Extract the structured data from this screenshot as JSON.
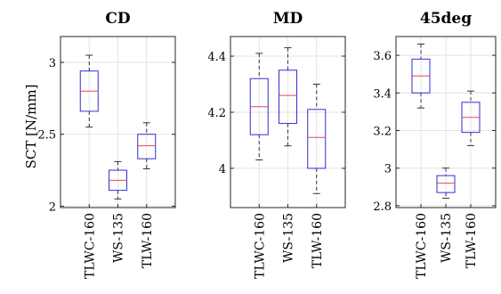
{
  "chart_data": {
    "type": "box",
    "ylabel": "SCT [N/mm]",
    "categories": [
      "TLWC-160",
      "WS-135",
      "TLW-160"
    ],
    "colors": {
      "box": "#2f2fd6",
      "median": "#e8474b",
      "whisker": "#333333"
    },
    "grid": true,
    "panels": [
      {
        "title": "CD",
        "ylim": [
          1.99,
          3.18
        ],
        "yticks": [
          2,
          2.5,
          3
        ],
        "ytick_labels": [
          "2",
          "2.5",
          "3"
        ],
        "boxes": [
          {
            "category": "TLWC-160",
            "min": 2.55,
            "q1": 2.66,
            "median": 2.8,
            "q3": 2.94,
            "max": 3.05
          },
          {
            "category": "WS-135",
            "min": 2.05,
            "q1": 2.11,
            "median": 2.18,
            "q3": 2.25,
            "max": 2.31
          },
          {
            "category": "TLW-160",
            "min": 2.26,
            "q1": 2.33,
            "median": 2.42,
            "q3": 2.5,
            "max": 2.58
          }
        ]
      },
      {
        "title": "MD",
        "ylim": [
          3.86,
          4.47
        ],
        "yticks": [
          4.0,
          4.2,
          4.4
        ],
        "ytick_labels": [
          "4",
          "4.2",
          "4.4"
        ],
        "boxes": [
          {
            "category": "TLWC-160",
            "min": 4.03,
            "q1": 4.12,
            "median": 4.22,
            "q3": 4.32,
            "max": 4.41
          },
          {
            "category": "WS-135",
            "min": 4.08,
            "q1": 4.16,
            "median": 4.26,
            "q3": 4.35,
            "max": 4.43
          },
          {
            "category": "TLW-160",
            "min": 3.91,
            "q1": 4.0,
            "median": 4.11,
            "q3": 4.21,
            "max": 4.3
          }
        ]
      },
      {
        "title": "45deg",
        "ylim": [
          2.79,
          3.7
        ],
        "yticks": [
          2.8,
          3.0,
          3.2,
          3.4,
          3.6
        ],
        "ytick_labels": [
          "2.8",
          "3",
          "3.2",
          "3.4",
          "3.6"
        ],
        "boxes": [
          {
            "category": "TLWC-160",
            "min": 3.32,
            "q1": 3.4,
            "median": 3.49,
            "q3": 3.58,
            "max": 3.66
          },
          {
            "category": "WS-135",
            "min": 2.84,
            "q1": 2.87,
            "median": 2.92,
            "q3": 2.96,
            "max": 3.0
          },
          {
            "category": "TLW-160",
            "min": 3.12,
            "q1": 3.19,
            "median": 3.27,
            "q3": 3.35,
            "max": 3.41
          }
        ]
      }
    ]
  }
}
